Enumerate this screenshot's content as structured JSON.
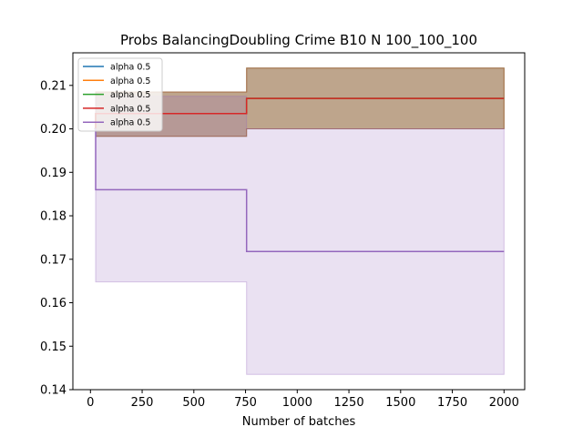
{
  "chart_data": {
    "type": "line",
    "title": "Probs BalancingDoubling Crime B10 N 100_100_100",
    "xlabel": "Number of batches",
    "ylabel": "",
    "xlim": [
      -85,
      2100
    ],
    "ylim": [
      0.14,
      0.2175
    ],
    "xticks": [
      0,
      250,
      500,
      750,
      1000,
      1250,
      1500,
      1750,
      2000
    ],
    "xtick_labels": [
      "0",
      "250",
      "500",
      "750",
      "1000",
      "1250",
      "1500",
      "1750",
      "2000"
    ],
    "yticks": [
      0.14,
      0.15,
      0.16,
      0.17,
      0.18,
      0.19,
      0.2,
      0.21
    ],
    "ytick_labels": [
      "0.14",
      "0.15",
      "0.16",
      "0.17",
      "0.18",
      "0.19",
      "0.20",
      "0.21"
    ],
    "grid": false,
    "legend": "top-left",
    "series": [
      {
        "name": "alpha 0.5",
        "color": "#1f77b4",
        "x": [
          20,
          25,
          755,
          2000
        ],
        "y": [
          0.2,
          0.2035,
          0.207,
          0.207
        ],
        "band_low": [
          0.2,
          0.1983,
          0.2,
          0.2
        ],
        "band_high": [
          0.2,
          0.2085,
          0.214,
          0.214
        ]
      },
      {
        "name": "alpha 0.5",
        "color": "#ff7f0e",
        "x": [
          20,
          25,
          755,
          2000
        ],
        "y": [
          0.2,
          0.2035,
          0.207,
          0.207
        ],
        "band_low": [
          0.2,
          0.1983,
          0.2,
          0.2
        ],
        "band_high": [
          0.2,
          0.2085,
          0.214,
          0.214
        ]
      },
      {
        "name": "alpha 0.5",
        "color": "#2ca02c",
        "x": [
          20,
          25,
          755,
          2000
        ],
        "y": [
          0.2,
          0.2035,
          0.207,
          0.207
        ],
        "band_low": [
          0.2,
          0.1983,
          0.2,
          0.2
        ],
        "band_high": [
          0.2,
          0.2085,
          0.214,
          0.214
        ]
      },
      {
        "name": "alpha 0.5",
        "color": "#d62728",
        "x": [
          20,
          25,
          755,
          2000
        ],
        "y": [
          0.2,
          0.2035,
          0.207,
          0.207
        ],
        "band_low": [
          0.2,
          0.1983,
          0.2,
          0.2
        ],
        "band_high": [
          0.2,
          0.2085,
          0.214,
          0.214
        ]
      },
      {
        "name": "alpha 0.5",
        "color": "#9467bd",
        "x": [
          20,
          25,
          755,
          2000
        ],
        "y": [
          0.2,
          0.186,
          0.1718,
          0.1718
        ],
        "band_low": [
          0.2,
          0.1648,
          0.1435,
          0.1435
        ],
        "band_high": [
          0.2,
          0.2075,
          0.2,
          0.2
        ]
      }
    ]
  }
}
